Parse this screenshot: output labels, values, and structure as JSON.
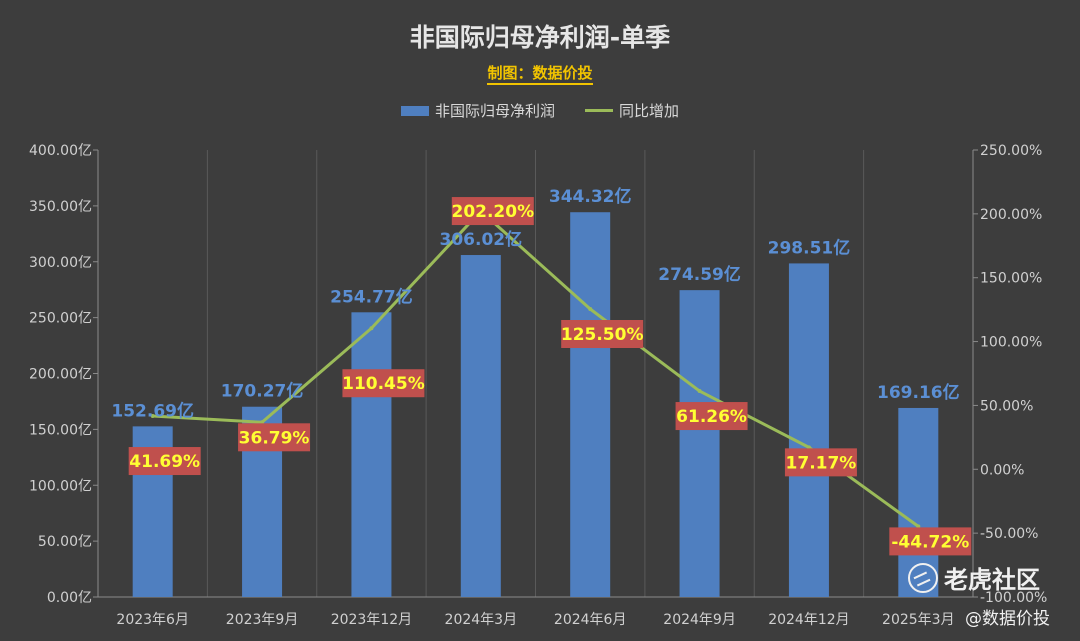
{
  "title": "非国际归母净利润-单季",
  "subtitle": "制图：数据价投",
  "legend": {
    "bar_label": "非国际归母净利润",
    "line_label": "同比增加"
  },
  "watermark": {
    "brand": "老虎社区",
    "handle": "@数据价投"
  },
  "colors": {
    "background": "#3d3d3d",
    "bar": "#4f7fc0",
    "line": "#9bbb59",
    "bar_label": "#5b8fd4",
    "pct_label_bg": "#c0504d",
    "pct_label_text": "#ffff33"
  },
  "chart_data": {
    "type": "bar",
    "categories": [
      "2023年6月",
      "2023年9月",
      "2023年12月",
      "2024年3月",
      "2024年6月",
      "2024年9月",
      "2024年12月",
      "2025年3月"
    ],
    "series": [
      {
        "name": "非国际归母净利润",
        "type": "bar",
        "axis": "left",
        "values": [
          152.69,
          170.27,
          254.77,
          306.02,
          344.32,
          274.59,
          298.51,
          169.16
        ],
        "labels": [
          "152.69亿",
          "170.27亿",
          "254.77亿",
          "306.02亿",
          "344.32亿",
          "274.59亿",
          "298.51亿",
          "169.16亿"
        ]
      },
      {
        "name": "同比增加",
        "type": "line",
        "axis": "right",
        "values": [
          41.69,
          36.79,
          110.45,
          202.2,
          125.5,
          61.26,
          17.17,
          -44.72
        ],
        "labels": [
          "41.69%",
          "36.79%",
          "110.45%",
          "202.20%",
          "125.50%",
          "61.26%",
          "17.17%",
          "-44.72%"
        ]
      }
    ],
    "y_left": {
      "ylim": [
        0,
        400
      ],
      "ticks": [
        "0.00亿",
        "50.00亿",
        "100.00亿",
        "150.00亿",
        "200.00亿",
        "250.00亿",
        "300.00亿",
        "350.00亿",
        "400.00亿"
      ]
    },
    "y_right": {
      "ylim": [
        -100,
        250
      ],
      "ticks": [
        "-100.00%",
        "-50.00%",
        "0.00%",
        "50.00%",
        "100.00%",
        "150.00%",
        "200.00%",
        "250.00%"
      ]
    },
    "grid": "vertical",
    "legend_position": "top"
  }
}
